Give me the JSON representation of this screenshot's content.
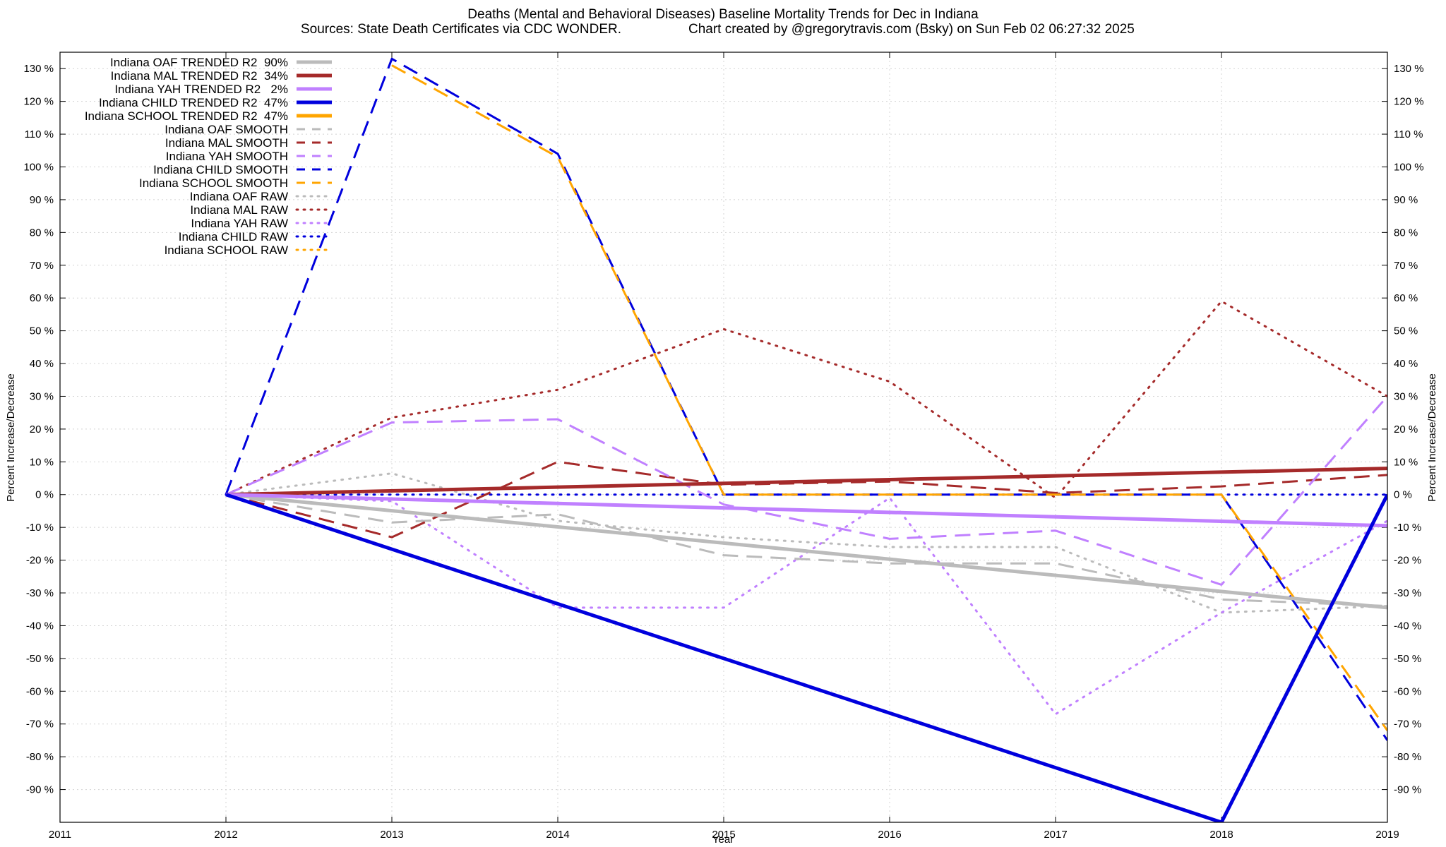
{
  "chart_data": {
    "type": "line",
    "title": "Deaths (Mental and Behavioral Diseases)  Baseline Mortality Trends for Dec in Indiana",
    "subtitle_left": "Sources: State Death Certificates via CDC WONDER.",
    "subtitle_right": "Chart created by @gregorytravis.com (Bsky) on Sun Feb 02 06:27:32 2025",
    "xlabel": "Year",
    "ylabel": "Percent Increase/Decrease",
    "ylabel_right": "Percent Increase/Decrease",
    "xlim": [
      2011,
      2019
    ],
    "ylim": [
      -100,
      135
    ],
    "x_ticks": [
      2011,
      2012,
      2013,
      2014,
      2015,
      2016,
      2017,
      2018,
      2019
    ],
    "y_ticks": [
      130,
      120,
      110,
      100,
      90,
      80,
      70,
      60,
      50,
      40,
      30,
      20,
      10,
      0,
      -10,
      -20,
      -30,
      -40,
      -50,
      -60,
      -70,
      -80,
      -90
    ],
    "y_tick_suffix": " %",
    "grid": true,
    "legend_position": "top-left",
    "series": [
      {
        "name": "Indiana OAF TRENDED R2  90%",
        "style": "solid",
        "color": "#bbbbbb",
        "x": [
          2012,
          2019
        ],
        "y": [
          0,
          -34.5
        ]
      },
      {
        "name": "Indiana MAL TRENDED R2  34%",
        "style": "solid",
        "color": "#a52a2a",
        "x": [
          2012,
          2019
        ],
        "y": [
          0,
          8
        ]
      },
      {
        "name": "Indiana YAH TRENDED R2   2%",
        "style": "solid",
        "color": "#c080ff",
        "x": [
          2012,
          2019
        ],
        "y": [
          0,
          -9.5
        ]
      },
      {
        "name": "Indiana CHILD TRENDED R2  47%",
        "style": "solid",
        "color": "#0000dd",
        "x": [
          2012,
          2018,
          2019
        ],
        "y": [
          0,
          -100,
          0
        ]
      },
      {
        "name": "Indiana SCHOOL TRENDED R2  47%",
        "style": "solid",
        "color": "#ffa500",
        "x": [],
        "y": []
      },
      {
        "name": "Indiana OAF SMOOTH",
        "style": "dashed",
        "color": "#bbbbbb",
        "x": [
          2012,
          2013,
          2014,
          2015,
          2016,
          2017,
          2018,
          2019
        ],
        "y": [
          0,
          -8.5,
          -6,
          -18.5,
          -21,
          -21,
          -32,
          -34
        ]
      },
      {
        "name": "Indiana MAL SMOOTH",
        "style": "dashed",
        "color": "#a52a2a",
        "x": [
          2012,
          2013,
          2014,
          2015,
          2016,
          2017,
          2018,
          2019
        ],
        "y": [
          0,
          -13,
          10,
          3,
          4,
          0.5,
          2.5,
          6
        ]
      },
      {
        "name": "Indiana YAH SMOOTH",
        "style": "dashed",
        "color": "#c080ff",
        "x": [
          2012,
          2013,
          2014,
          2015,
          2016,
          2017,
          2018,
          2019
        ],
        "y": [
          0,
          22,
          23,
          -3,
          -13.5,
          -11,
          -27.5,
          30
        ]
      },
      {
        "name": "Indiana CHILD SMOOTH",
        "style": "dashed",
        "color": "#0000dd",
        "x": [
          2012,
          2013,
          2014,
          2015,
          2016,
          2017,
          2018,
          2019
        ],
        "y": [
          0,
          133,
          104,
          0,
          0,
          0,
          0,
          -75
        ]
      },
      {
        "name": "Indiana SCHOOL SMOOTH",
        "style": "dashed",
        "color": "#ffa500",
        "x": [
          2013,
          2014,
          2015,
          2016,
          2017,
          2018,
          2019
        ],
        "y": [
          131,
          103,
          0,
          0,
          0,
          0,
          -72
        ]
      },
      {
        "name": "Indiana OAF RAW",
        "style": "dotted",
        "color": "#bbbbbb",
        "x": [
          2012,
          2013,
          2014,
          2015,
          2016,
          2017,
          2018,
          2019
        ],
        "y": [
          0,
          6.5,
          -8,
          -13,
          -16,
          -16,
          -36,
          -34
        ]
      },
      {
        "name": "Indiana MAL RAW",
        "style": "dotted",
        "color": "#a52a2a",
        "x": [
          2012,
          2013,
          2014,
          2015,
          2016,
          2017,
          2018,
          2019
        ],
        "y": [
          0,
          23.5,
          32,
          50.5,
          34.5,
          -1,
          59,
          30
        ]
      },
      {
        "name": "Indiana YAH RAW",
        "style": "dotted",
        "color": "#c080ff",
        "x": [
          2012,
          2013,
          2014,
          2015,
          2016,
          2017,
          2018,
          2019
        ],
        "y": [
          0,
          -2,
          -34.5,
          -34.5,
          -1,
          -67,
          -36,
          -8
        ]
      },
      {
        "name": "Indiana CHILD RAW",
        "style": "dotted",
        "color": "#0000dd",
        "x": [
          2012,
          2019
        ],
        "y": [
          0,
          0
        ]
      },
      {
        "name": "Indiana SCHOOL RAW",
        "style": "dotted",
        "color": "#ffa500",
        "x": [],
        "y": []
      }
    ]
  }
}
